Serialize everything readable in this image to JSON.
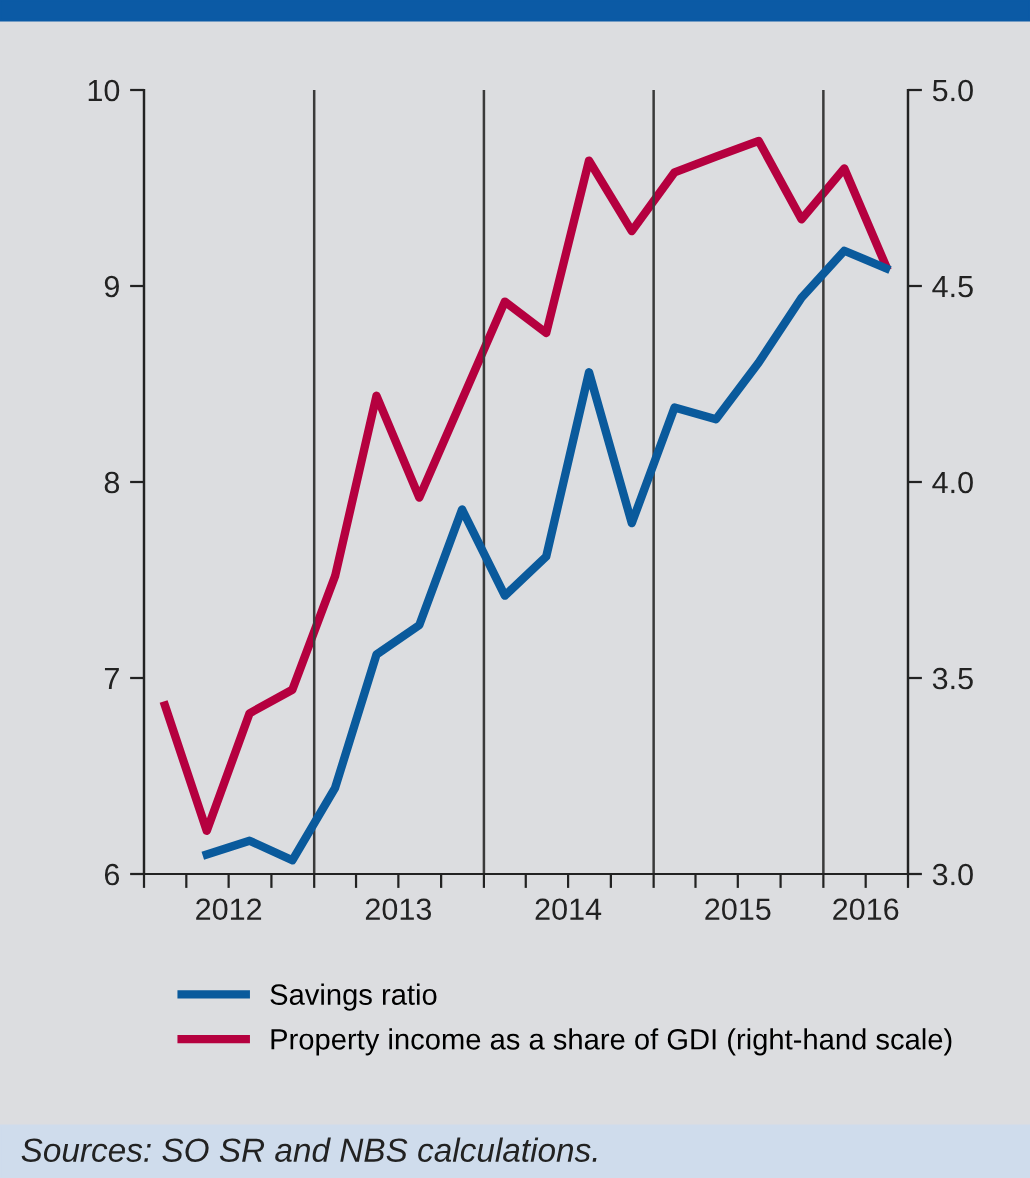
{
  "chart_data": {
    "type": "line",
    "x": [
      "2012-02-15",
      "2012-05-15",
      "2012-08-15",
      "2012-11-15",
      "2013-02-15",
      "2013-05-15",
      "2013-08-15",
      "2013-11-15",
      "2014-02-15",
      "2014-05-15",
      "2014-08-15",
      "2014-11-15",
      "2015-02-15",
      "2015-05-15",
      "2015-08-15",
      "2015-11-15",
      "2016-02-15",
      "2016-05-15"
    ],
    "series": [
      {
        "name": "Savings ratio",
        "color": "#0a5a9c",
        "values": [
          null,
          6.1,
          6.17,
          6.07,
          6.44,
          7.12,
          7.27,
          7.86,
          7.42,
          7.62,
          8.56,
          7.79,
          8.38,
          8.32,
          8.61,
          8.94,
          9.18,
          9.09
        ]
      },
      {
        "name": "Property income as a share of GDI (right-hand scale)",
        "color": "#b5003f",
        "axis": "y2",
        "values": [
          3.43,
          3.11,
          3.41,
          3.47,
          3.76,
          4.22,
          3.96,
          4.21,
          4.46,
          4.38,
          4.82,
          4.64,
          4.79,
          4.83,
          4.87,
          4.67,
          4.8,
          4.55
        ]
      }
    ],
    "xlim": [
      "2012-01-01",
      "2016-07-01"
    ],
    "xticks": [
      {
        "value": "2012-01-01",
        "label": null
      },
      {
        "value": "2012-04-01",
        "label": null
      },
      {
        "value": "2012-07-01",
        "label": "2012"
      },
      {
        "value": "2012-10-01",
        "label": null
      },
      {
        "value": "2013-01-01",
        "label": null
      },
      {
        "value": "2013-04-01",
        "label": null
      },
      {
        "value": "2013-07-01",
        "label": "2013"
      },
      {
        "value": "2013-10-01",
        "label": null
      },
      {
        "value": "2014-01-01",
        "label": null
      },
      {
        "value": "2014-04-01",
        "label": null
      },
      {
        "value": "2014-07-01",
        "label": "2014"
      },
      {
        "value": "2014-10-01",
        "label": null
      },
      {
        "value": "2015-01-01",
        "label": null
      },
      {
        "value": "2015-04-01",
        "label": null
      },
      {
        "value": "2015-07-01",
        "label": "2015"
      },
      {
        "value": "2015-10-01",
        "label": null
      },
      {
        "value": "2016-01-01",
        "label": null
      },
      {
        "value": "2016-04-01",
        "label": "2016"
      },
      {
        "value": "2016-07-01",
        "label": null
      }
    ],
    "ylim": [
      6,
      10
    ],
    "yticks": [
      6,
      7,
      8,
      9,
      10
    ],
    "y2lim": [
      3.0,
      5.0
    ],
    "y2ticks": [
      {
        "value": 3,
        "label": "3.0"
      },
      3.5,
      {
        "value": 4,
        "label": "4.0"
      },
      4.5,
      {
        "value": 5,
        "label": "5.0"
      }
    ],
    "ref_lines": [
      {
        "axis": "x",
        "value": "2013-01-01",
        "color": "#3a3a3a"
      },
      {
        "axis": "x",
        "value": "2014-01-01",
        "color": "#3a3a3a"
      },
      {
        "axis": "x",
        "value": "2015-01-01",
        "color": "#3a3a3a"
      },
      {
        "axis": "x",
        "value": "2016-01-01",
        "color": "#3a3a3a"
      }
    ],
    "legend": "bottom",
    "grid": false,
    "marker": "none",
    "line_style": "solid",
    "annotations": [
      "Sources: SO SR and NBS calculations."
    ]
  }
}
